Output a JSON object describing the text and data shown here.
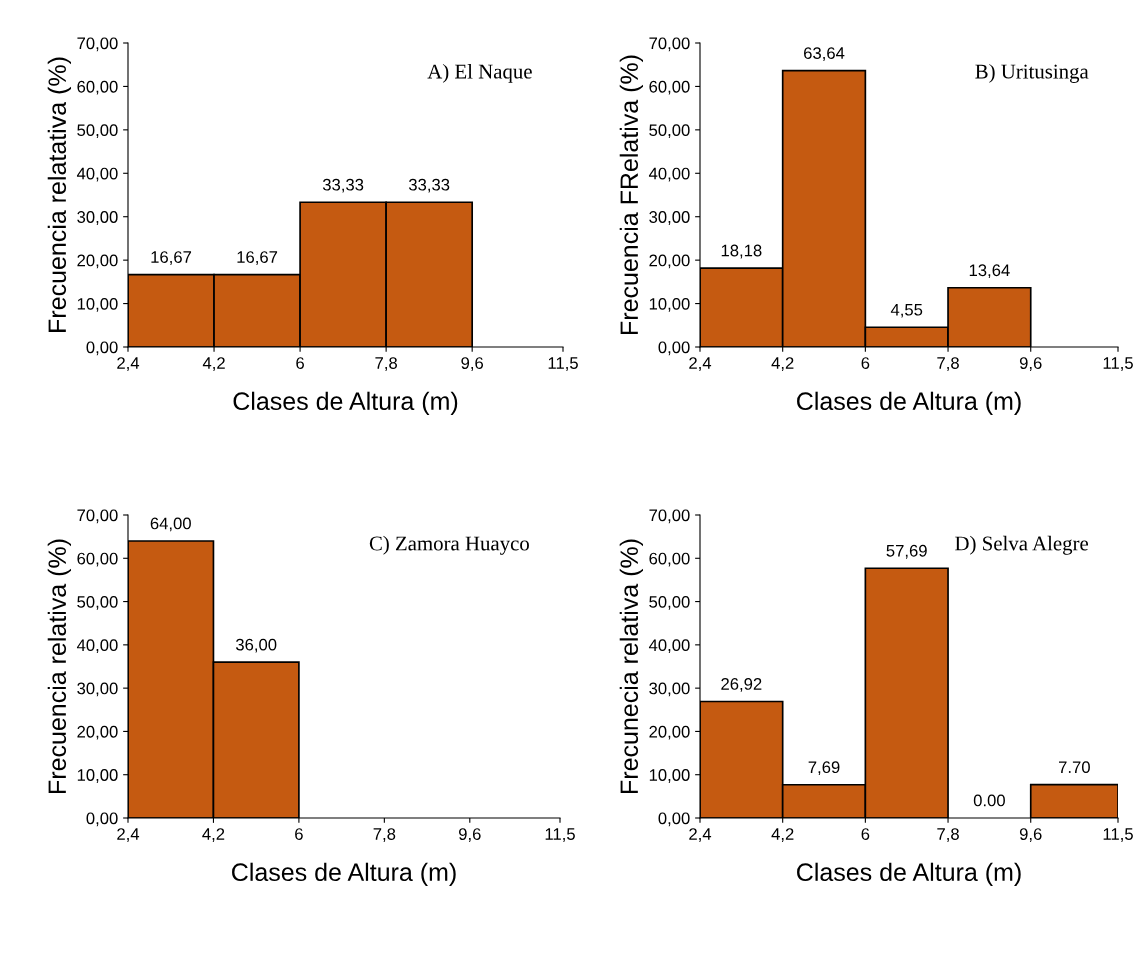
{
  "chart_data": [
    {
      "type": "histogram",
      "title": "A) El Naque",
      "xlabel": "Clases de Altura (m)",
      "ylabel": "Frecuencia relatativa (%)",
      "bins": [
        2.4,
        4.2,
        6,
        7.8,
        9.6
      ],
      "values": [
        16.67,
        16.67,
        33.33,
        33.33
      ],
      "value_labels": [
        "16,67",
        "16,67",
        "33,33",
        "33,33"
      ],
      "color": "#c55a11",
      "xlim": [
        2.4,
        11.5
      ],
      "ylim": [
        0,
        70
      ],
      "xticks": [
        {
          "value": 2.4,
          "label": "2,4"
        },
        {
          "value": 4.2,
          "label": "4,2"
        },
        {
          "value": 6,
          "label": "6"
        },
        {
          "value": 7.8,
          "label": "7,8"
        },
        {
          "value": 9.6,
          "label": "9,6"
        },
        {
          "value": 11.5,
          "label": "11,5"
        }
      ],
      "yticks": [
        {
          "value": 0,
          "label": "0,00"
        },
        {
          "value": 10,
          "label": "10,00"
        },
        {
          "value": 20,
          "label": "20,00"
        },
        {
          "value": 30,
          "label": "30,00"
        },
        {
          "value": 40,
          "label": "40,00"
        },
        {
          "value": 50,
          "label": "50,00"
        },
        {
          "value": 60,
          "label": "60,00"
        },
        {
          "value": 70,
          "label": "70,00"
        }
      ]
    },
    {
      "type": "histogram",
      "title": "B) Uritusinga",
      "xlabel": "Clases de Altura (m)",
      "ylabel": "Frecuencia FRelativa (%)",
      "bins": [
        2.4,
        4.2,
        6,
        7.8,
        9.6
      ],
      "values": [
        18.18,
        63.64,
        4.55,
        13.64
      ],
      "value_labels": [
        "18,18",
        "63,64",
        "4,55",
        "13,64"
      ],
      "color": "#c55a11",
      "xlim": [
        2.4,
        11.5
      ],
      "ylim": [
        0,
        70
      ],
      "xticks": [
        {
          "value": 2.4,
          "label": "2,4"
        },
        {
          "value": 4.2,
          "label": "4,2"
        },
        {
          "value": 6,
          "label": "6"
        },
        {
          "value": 7.8,
          "label": "7,8"
        },
        {
          "value": 9.6,
          "label": "9,6"
        },
        {
          "value": 11.5,
          "label": "11,5"
        }
      ],
      "yticks": [
        {
          "value": 0,
          "label": "0,00"
        },
        {
          "value": 10,
          "label": "10,00"
        },
        {
          "value": 20,
          "label": "20,00"
        },
        {
          "value": 30,
          "label": "30,00"
        },
        {
          "value": 40,
          "label": "40,00"
        },
        {
          "value": 50,
          "label": "50,00"
        },
        {
          "value": 60,
          "label": "60,00"
        },
        {
          "value": 70,
          "label": "70,00"
        }
      ]
    },
    {
      "type": "histogram",
      "title": "C) Zamora Huayco",
      "xlabel": "Clases de Altura (m)",
      "ylabel": "Frecuencia relativa (%)",
      "bins": [
        2.4,
        4.2,
        6
      ],
      "values": [
        64,
        36
      ],
      "value_labels": [
        "64,00",
        "36,00"
      ],
      "color": "#c55a11",
      "xlim": [
        2.4,
        11.5
      ],
      "ylim": [
        0,
        70
      ],
      "xticks": [
        {
          "value": 2.4,
          "label": "2,4"
        },
        {
          "value": 4.2,
          "label": "4,2"
        },
        {
          "value": 6,
          "label": "6"
        },
        {
          "value": 7.8,
          "label": "7,8"
        },
        {
          "value": 9.6,
          "label": "9,6"
        },
        {
          "value": 11.5,
          "label": "11,5"
        }
      ],
      "yticks": [
        {
          "value": 0,
          "label": "0,00"
        },
        {
          "value": 10,
          "label": "10,00"
        },
        {
          "value": 20,
          "label": "20,00"
        },
        {
          "value": 30,
          "label": "30,00"
        },
        {
          "value": 40,
          "label": "40,00"
        },
        {
          "value": 50,
          "label": "50,00"
        },
        {
          "value": 60,
          "label": "60,00"
        },
        {
          "value": 70,
          "label": "70,00"
        }
      ]
    },
    {
      "type": "histogram",
      "title": "D) Selva Alegre",
      "xlabel": "Clases de Altura (m)",
      "ylabel": "Frecunecia relativa (%)",
      "bins": [
        2.4,
        4.2,
        6,
        7.8,
        9.6,
        11.5
      ],
      "values": [
        26.92,
        7.69,
        57.69,
        0,
        7.7
      ],
      "value_labels": [
        "26,92",
        "7,69",
        "57,69",
        "0.00",
        "7.70"
      ],
      "color": "#c55a11",
      "xlim": [
        2.4,
        11.5
      ],
      "ylim": [
        0,
        70
      ],
      "xticks": [
        {
          "value": 2.4,
          "label": "2,4"
        },
        {
          "value": 4.2,
          "label": "4,2"
        },
        {
          "value": 6,
          "label": "6"
        },
        {
          "value": 7.8,
          "label": "7,8"
        },
        {
          "value": 9.6,
          "label": "9,6"
        },
        {
          "value": 11.5,
          "label": "11,5"
        }
      ],
      "yticks": [
        {
          "value": 0,
          "label": "0,00"
        },
        {
          "value": 10,
          "label": "10,00"
        },
        {
          "value": 20,
          "label": "20,00"
        },
        {
          "value": 30,
          "label": "30,00"
        },
        {
          "value": 40,
          "label": "40,00"
        },
        {
          "value": 50,
          "label": "50,00"
        },
        {
          "value": 60,
          "label": "60,00"
        },
        {
          "value": 70,
          "label": "70,00"
        }
      ]
    }
  ]
}
